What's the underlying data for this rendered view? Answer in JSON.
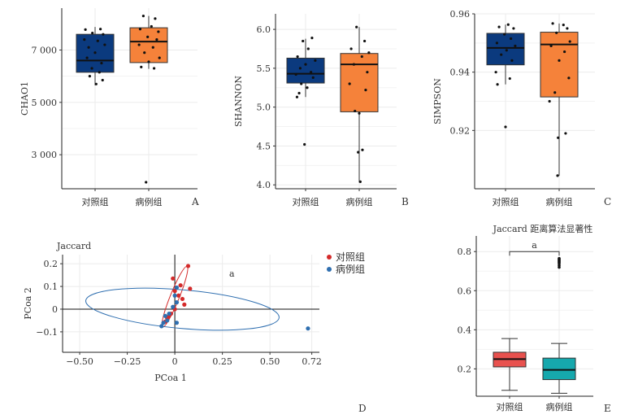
{
  "colors": {
    "control_box": "#0b3a7e",
    "case_box": "#f5823a",
    "control_point": "#d42a2a",
    "case_point": "#2f6fb0",
    "e_control_box": "#e8514e",
    "e_case_box": "#16a8ad"
  },
  "chart_data": [
    {
      "id": "A",
      "type": "box",
      "panel_label": "A",
      "ylabel": "CHAO1",
      "categories": [
        "对照组",
        "病例组"
      ],
      "ylim": [
        1700,
        8600
      ],
      "yticks": [
        3000,
        5000,
        7000
      ],
      "ytick_labels": [
        "3 000",
        "5 000",
        "7 000"
      ],
      "boxes": [
        {
          "group": "对照组",
          "q1": 6150,
          "median": 6600,
          "q3": 7600,
          "whisker_low": 5650,
          "whisker_high": 7880
        },
        {
          "group": "病例组",
          "q1": 6520,
          "median": 7320,
          "q3": 7850,
          "whisker_low": 6280,
          "whisker_high": 8300
        }
      ],
      "points": [
        [
          [
            -0.18,
            7780
          ],
          [
            0.1,
            7800
          ],
          [
            -0.05,
            7650
          ],
          [
            0.15,
            7600
          ],
          [
            -0.2,
            7400
          ],
          [
            0.05,
            7350
          ],
          [
            0.18,
            7200
          ],
          [
            -0.12,
            7100
          ],
          [
            0.0,
            6900
          ],
          [
            -0.15,
            6700
          ],
          [
            0.12,
            6500
          ],
          [
            -0.06,
            6300
          ],
          [
            0.08,
            6150
          ],
          [
            -0.1,
            6000
          ],
          [
            0.14,
            5850
          ],
          [
            0.02,
            5700
          ]
        ],
        [
          [
            -0.1,
            8300
          ],
          [
            0.12,
            8200
          ],
          [
            0.05,
            7900
          ],
          [
            -0.16,
            7800
          ],
          [
            0.18,
            7700
          ],
          [
            -0.02,
            7500
          ],
          [
            0.15,
            7400
          ],
          [
            -0.18,
            7200
          ],
          [
            0.08,
            7100
          ],
          [
            -0.08,
            6900
          ],
          [
            0.2,
            6700
          ],
          [
            0.0,
            6550
          ],
          [
            -0.14,
            6350
          ],
          [
            0.1,
            6300
          ],
          [
            -0.05,
            1950
          ]
        ]
      ]
    },
    {
      "id": "B",
      "type": "box",
      "panel_label": "B",
      "ylabel": "SHANNON",
      "categories": [
        "对照组",
        "病例组"
      ],
      "ylim": [
        3.95,
        6.2
      ],
      "yticks": [
        4.0,
        4.5,
        5.0,
        5.5,
        6.0
      ],
      "ytick_labels": [
        "4.0",
        "4.5",
        "5.0",
        "5.5",
        "6.0"
      ],
      "boxes": [
        {
          "group": "对照组",
          "q1": 5.31,
          "median": 5.43,
          "q3": 5.63,
          "whisker_low": 5.13,
          "whisker_high": 5.88
        },
        {
          "group": "病例组",
          "q1": 4.94,
          "median": 5.55,
          "q3": 5.69,
          "whisker_low": 4.03,
          "whisker_high": 6.03
        }
      ],
      "points": [
        [
          [
            0.12,
            5.89
          ],
          [
            -0.05,
            5.85
          ],
          [
            0.05,
            5.75
          ],
          [
            -0.15,
            5.65
          ],
          [
            0.18,
            5.6
          ],
          [
            0.0,
            5.55
          ],
          [
            -0.1,
            5.5
          ],
          [
            0.1,
            5.45
          ],
          [
            -0.18,
            5.42
          ],
          [
            0.14,
            5.38
          ],
          [
            -0.08,
            5.3
          ],
          [
            0.03,
            5.25
          ],
          [
            -0.12,
            5.18
          ],
          [
            -0.16,
            5.13
          ],
          [
            -0.02,
            4.52
          ]
        ],
        [
          [
            -0.05,
            6.03
          ],
          [
            0.1,
            5.85
          ],
          [
            -0.15,
            5.75
          ],
          [
            0.18,
            5.7
          ],
          [
            0.05,
            5.65
          ],
          [
            -0.1,
            5.55
          ],
          [
            0.15,
            5.45
          ],
          [
            -0.18,
            5.3
          ],
          [
            0.12,
            5.22
          ],
          [
            -0.08,
            4.95
          ],
          [
            0.0,
            4.92
          ],
          [
            0.06,
            4.45
          ],
          [
            -0.02,
            4.42
          ],
          [
            0.02,
            4.04
          ]
        ]
      ]
    },
    {
      "id": "C",
      "type": "box",
      "panel_label": "C",
      "ylabel": "SIMPSON",
      "categories": [
        "对照组",
        "病例组"
      ],
      "ylim": [
        0.9,
        0.96
      ],
      "yticks": [
        0.92,
        0.94,
        0.96
      ],
      "ytick_labels": [
        "0.92",
        "0.94",
        "0.96"
      ],
      "boxes": [
        {
          "group": "对照组",
          "q1": 0.9425,
          "median": 0.9483,
          "q3": 0.9533,
          "whisker_low": 0.9358,
          "whisker_high": 0.9563
        },
        {
          "group": "病例组",
          "q1": 0.9315,
          "median": 0.9495,
          "q3": 0.9537,
          "whisker_low": 0.9045,
          "whisker_high": 0.9567
        }
      ],
      "points": [
        [
          [
            0.05,
            0.9563
          ],
          [
            -0.12,
            0.9555
          ],
          [
            0.15,
            0.955
          ],
          [
            -0.02,
            0.953
          ],
          [
            0.1,
            0.9515
          ],
          [
            -0.16,
            0.95
          ],
          [
            0.18,
            0.949
          ],
          [
            0.02,
            0.9475
          ],
          [
            -0.08,
            0.946
          ],
          [
            0.12,
            0.944
          ],
          [
            -0.18,
            0.94
          ],
          [
            0.08,
            0.9378
          ],
          [
            -0.15,
            0.9358
          ],
          [
            0.0,
            0.9212
          ]
        ],
        [
          [
            -0.12,
            0.9567
          ],
          [
            0.08,
            0.9562
          ],
          [
            0.15,
            0.955
          ],
          [
            -0.05,
            0.9535
          ],
          [
            0.2,
            0.9505
          ],
          [
            -0.15,
            0.949
          ],
          [
            0.1,
            0.947
          ],
          [
            0.0,
            0.944
          ],
          [
            0.18,
            0.938
          ],
          [
            -0.08,
            0.933
          ],
          [
            -0.18,
            0.93
          ],
          [
            0.12,
            0.919
          ],
          [
            -0.02,
            0.9175
          ],
          [
            -0.03,
            0.9045
          ]
        ]
      ]
    },
    {
      "id": "D",
      "type": "scatter",
      "panel_label": "D",
      "title": "Jaccard",
      "xlabel": "PCoa 1",
      "ylabel": "PCoa 2",
      "xlim": [
        -0.59,
        0.76
      ],
      "ylim": [
        -0.19,
        0.24
      ],
      "xticks": [
        -0.5,
        -0.25,
        0,
        0.25,
        0.5,
        0.72
      ],
      "xtick_labels": [
        "−0.50",
        "−0.25",
        "0",
        "0.25",
        "0.50",
        "0.72"
      ],
      "yticks": [
        -0.1,
        0,
        0.1,
        0.2
      ],
      "ytick_labels": [
        "−0.1",
        "0",
        "0.1",
        "0.2"
      ],
      "annotation": "a",
      "legend": [
        "对照组",
        "病例组"
      ],
      "series": [
        {
          "name": "对照组",
          "points": [
            [
              0.07,
              0.19
            ],
            [
              -0.01,
              0.135
            ],
            [
              0.03,
              0.105
            ],
            [
              0.08,
              0.09
            ],
            [
              0.0,
              0.08
            ],
            [
              0.02,
              0.06
            ],
            [
              0.04,
              0.045
            ],
            [
              0.05,
              0.02
            ],
            [
              0.0,
              0.0
            ],
            [
              -0.02,
              -0.02
            ],
            [
              -0.04,
              -0.04
            ],
            [
              -0.05,
              -0.055
            ],
            [
              -0.03,
              -0.03
            ]
          ]
        },
        {
          "name": "病例组",
          "points": [
            [
              0.01,
              0.095
            ],
            [
              0.0,
              0.06
            ],
            [
              0.01,
              0.03
            ],
            [
              -0.01,
              0.01
            ],
            [
              -0.03,
              -0.02
            ],
            [
              -0.05,
              -0.03
            ],
            [
              -0.04,
              -0.05
            ],
            [
              -0.06,
              -0.06
            ],
            [
              -0.07,
              -0.075
            ],
            [
              0.01,
              -0.06
            ],
            [
              0.7,
              -0.085
            ]
          ]
        }
      ],
      "ellipses": [
        {
          "name": "对照组",
          "center": [
            0.0,
            0.055
          ],
          "rx": 0.16,
          "ry": 0.04,
          "angle_deg": 68
        },
        {
          "name": "病例组",
          "center": [
            0.04,
            0.0
          ],
          "rx": 0.51,
          "ry": 0.085,
          "angle_deg": -5
        }
      ]
    },
    {
      "id": "E",
      "type": "box",
      "panel_label": "E",
      "title": "Jaccard 距离算法显著性",
      "categories": [
        "对照组",
        "病例组"
      ],
      "ylim": [
        0.06,
        0.88
      ],
      "yticks": [
        0.2,
        0.4,
        0.6,
        0.8
      ],
      "ytick_labels": [
        "0.2",
        "0.4",
        "0.6",
        "0.8"
      ],
      "significance": "a",
      "boxes": [
        {
          "group": "对照组",
          "q1": 0.21,
          "median": 0.25,
          "q3": 0.285,
          "whisker_low": 0.09,
          "whisker_high": 0.355
        },
        {
          "group": "病例组",
          "q1": 0.145,
          "median": 0.195,
          "q3": 0.255,
          "whisker_low": 0.075,
          "whisker_high": 0.33
        }
      ],
      "outliers": [
        [],
        [
          0.72,
          0.73,
          0.74,
          0.745,
          0.75,
          0.755,
          0.76,
          0.765
        ]
      ]
    }
  ]
}
